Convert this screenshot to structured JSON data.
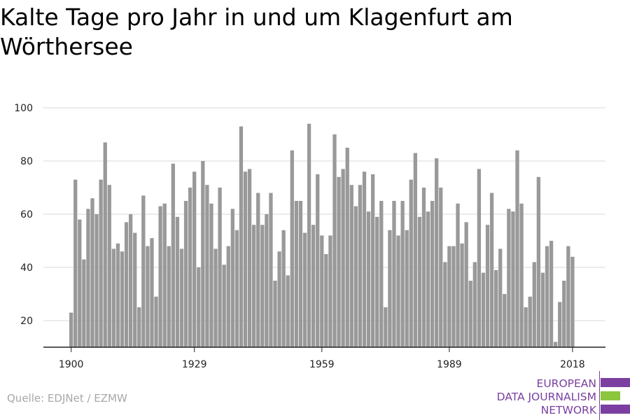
{
  "title": "Kalte Tage pro Jahr in und um Klagenfurt am Wörthersee",
  "source": "Quelle: EDJNet / EZMW",
  "logo": {
    "line1": "EUROPEAN",
    "line2": "DATA JOURNALISM",
    "line3": "NETWORK",
    "colors": [
      "#7a3fa0",
      "#8cc63f",
      "#7a3fa0"
    ]
  },
  "chart_data": {
    "type": "bar",
    "title": "Kalte Tage pro Jahr in und um Klagenfurt am Wörthersee",
    "bar_color": "#999999",
    "x_start": 1900,
    "x_ticks": [
      1900,
      1929,
      1959,
      1989,
      2018
    ],
    "y_ticks": [
      20,
      40,
      60,
      80,
      100
    ],
    "ylim": [
      10,
      100
    ],
    "grid": true,
    "values": [
      23,
      73,
      58,
      43,
      62,
      66,
      60,
      73,
      87,
      71,
      47,
      49,
      46,
      57,
      60,
      53,
      25,
      67,
      48,
      51,
      29,
      63,
      64,
      48,
      79,
      59,
      47,
      65,
      70,
      76,
      40,
      80,
      71,
      64,
      47,
      70,
      41,
      48,
      62,
      54,
      93,
      76,
      77,
      56,
      68,
      56,
      60,
      68,
      35,
      46,
      54,
      37,
      84,
      65,
      65,
      53,
      94,
      56,
      75,
      52,
      45,
      52,
      90,
      74,
      77,
      85,
      71,
      63,
      71,
      76,
      61,
      75,
      59,
      65,
      25,
      54,
      65,
      52,
      65,
      54,
      73,
      83,
      59,
      70,
      61,
      65,
      81,
      70,
      42,
      48,
      48,
      64,
      49,
      57,
      35,
      42,
      77,
      38,
      56,
      68,
      39,
      47,
      30,
      62,
      61,
      84,
      64,
      25,
      29,
      42,
      74,
      38,
      48,
      50,
      12,
      27,
      35,
      48,
      44
    ]
  }
}
